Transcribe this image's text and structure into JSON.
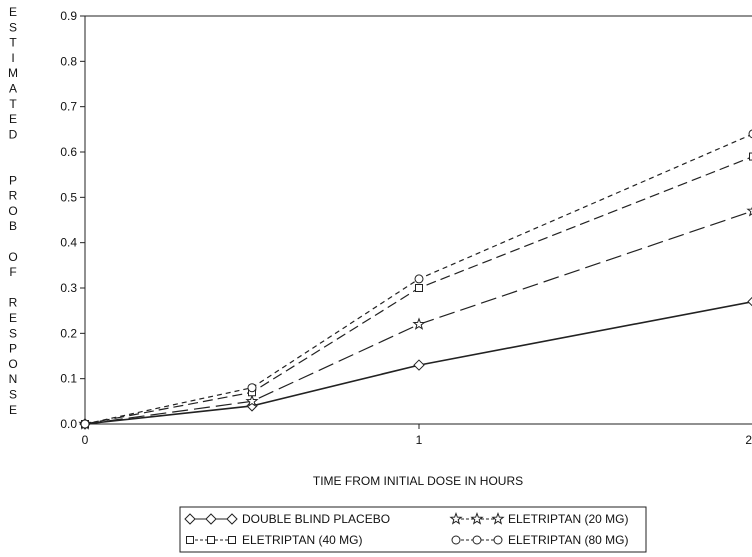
{
  "chart_data": {
    "type": "line",
    "title": "",
    "xlabel": "TIME FROM INITIAL DOSE IN HOURS",
    "ylabel": "ESTIMATED PROB OF RESPONSE",
    "ylabel_lines": [
      "E",
      "S",
      "T",
      "I",
      "M",
      "A",
      "T",
      "E",
      "D",
      "",
      "",
      "P",
      "R",
      "O",
      "B",
      "",
      "O",
      "F",
      "",
      "R",
      "E",
      "S",
      "P",
      "O",
      "N",
      "S",
      "E"
    ],
    "xlim": [
      0,
      2
    ],
    "ylim": [
      0,
      0.9
    ],
    "xticks": [
      0,
      1,
      2
    ],
    "xtick_labels": [
      "0",
      "1",
      "2"
    ],
    "yticks": [
      0.0,
      0.1,
      0.2,
      0.3,
      0.4,
      0.5,
      0.6,
      0.7,
      0.8,
      0.9
    ],
    "ytick_labels": [
      "0.0",
      "0.1",
      "0.2",
      "0.3",
      "0.4",
      "0.5",
      "0.6",
      "0.7",
      "0.8",
      "0.9"
    ],
    "grid": false,
    "legend_position": "bottom-center",
    "series": [
      {
        "name": "DOUBLE BLIND PLACEBO",
        "marker": "diamond",
        "dash": "solid",
        "x": [
          0,
          0.5,
          1,
          2
        ],
        "y": [
          0.0,
          0.04,
          0.13,
          0.27
        ]
      },
      {
        "name": "ELETRIPTAN (20 MG)",
        "marker": "star",
        "dash": "long-dash",
        "x": [
          0,
          0.5,
          1,
          2
        ],
        "y": [
          0.0,
          0.05,
          0.22,
          0.47
        ]
      },
      {
        "name": "ELETRIPTAN (40 MG)",
        "marker": "square",
        "dash": "medium-dash",
        "x": [
          0,
          0.5,
          1,
          2
        ],
        "y": [
          0.0,
          0.07,
          0.3,
          0.59
        ]
      },
      {
        "name": "ELETRIPTAN (80 MG)",
        "marker": "circle",
        "dash": "short-dash",
        "x": [
          0,
          0.5,
          1,
          2
        ],
        "y": [
          0.0,
          0.08,
          0.32,
          0.64
        ]
      }
    ],
    "legend_order": [
      0,
      1,
      2,
      3
    ],
    "line_color": "#222222"
  }
}
